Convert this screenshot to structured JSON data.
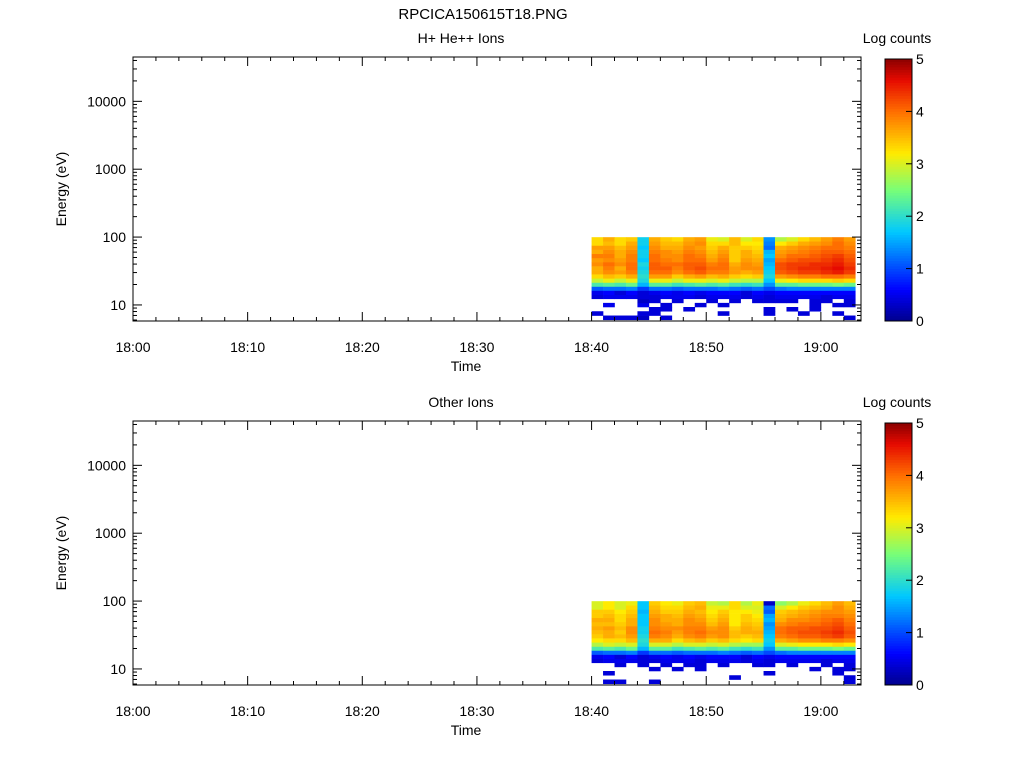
{
  "figure": {
    "title": "RPCICA150615T18.PNG"
  },
  "chart_data": [
    {
      "type": "heatmap",
      "title": "H+ He++ Ions",
      "xlabel": "Time",
      "ylabel": "Energy (eV)",
      "x_ticks": [
        "18:00",
        "18:10",
        "18:20",
        "18:30",
        "18:40",
        "18:50",
        "19:00"
      ],
      "xlim_minutes": [
        0,
        63.5
      ],
      "y_scale": "log",
      "y_ticks": [
        "10",
        "100",
        "1000",
        "10000"
      ],
      "ylim": [
        5.8,
        45000
      ],
      "colorbar": {
        "label": "Log counts",
        "ticks": [
          "0",
          "1",
          "2",
          "3",
          "4",
          "5"
        ],
        "range": [
          0,
          5
        ]
      },
      "time_bins_minutes": [
        40.5,
        41.5,
        42.5,
        43.5,
        44.5,
        45.5,
        46.5,
        47.5,
        48.5,
        49.5,
        50.5,
        51.5,
        52.5,
        53.5,
        54.5,
        55.5,
        56.5,
        57.5,
        58.5,
        59.5,
        60.5,
        61.5,
        62.5
      ],
      "energy_bins_eV": [
        6.5,
        7.5,
        8.7,
        10,
        11.5,
        13.2,
        15.2,
        17.5,
        20,
        23,
        26.5,
        30.5,
        35,
        40,
        46,
        53,
        61,
        70,
        81,
        93
      ],
      "values_log_counts_by_time": [
        [
          0,
          0.4,
          0,
          0,
          0,
          0.4,
          0.5,
          1.1,
          2.2,
          2.9,
          3.3,
          3.6,
          3.6,
          3.8,
          3.7,
          3.9,
          3.6,
          3.7,
          3.3,
          3.3
        ],
        [
          0.4,
          0,
          0,
          0.5,
          0,
          0.5,
          0.6,
          1.2,
          2.3,
          3.1,
          3.5,
          3.8,
          3.9,
          4.0,
          3.8,
          3.9,
          3.8,
          3.7,
          3.5,
          3.6
        ],
        [
          0.4,
          0,
          0,
          0,
          0,
          0.5,
          0.4,
          1.2,
          2.2,
          2.9,
          3.4,
          3.7,
          3.6,
          3.8,
          3.7,
          3.6,
          3.6,
          3.5,
          3.3,
          3.3
        ],
        [
          0.4,
          0,
          0,
          0,
          0,
          0.5,
          0.6,
          1.3,
          2.4,
          3.1,
          3.6,
          3.9,
          4.0,
          4.0,
          3.9,
          3.9,
          3.8,
          3.7,
          3.6,
          3.4
        ],
        [
          0.3,
          0.4,
          0,
          0.5,
          0.3,
          0.4,
          0.4,
          0.9,
          1.6,
          1.9,
          2.0,
          1.9,
          1.8,
          1.9,
          1.7,
          1.8,
          1.8,
          1.7,
          1.8,
          1.8
        ],
        [
          0,
          0.4,
          0.4,
          0,
          0.4,
          0.4,
          0.5,
          1.2,
          2.3,
          3.1,
          3.7,
          4.0,
          4.1,
          4.1,
          4.0,
          4.0,
          3.9,
          3.8,
          3.7,
          3.6
        ],
        [
          0.4,
          0,
          0.4,
          0.4,
          0,
          0.5,
          0.6,
          1.2,
          2.3,
          3.1,
          3.7,
          4.0,
          4.1,
          4.0,
          3.9,
          3.8,
          3.8,
          3.6,
          3.5,
          3.4
        ],
        [
          0,
          0,
          0,
          0,
          0.4,
          0.5,
          0.5,
          1.1,
          2.1,
          2.9,
          3.4,
          3.8,
          3.9,
          4.0,
          3.8,
          3.8,
          3.7,
          3.6,
          3.5,
          3.3
        ],
        [
          0,
          0,
          0.4,
          0,
          0,
          0.5,
          0.6,
          1.2,
          2.2,
          3.1,
          3.6,
          4.0,
          4.1,
          4.1,
          4.0,
          4.0,
          3.9,
          3.8,
          3.7,
          3.6
        ],
        [
          0,
          0,
          0,
          0.4,
          0,
          0.4,
          0.5,
          1.2,
          2.3,
          3.1,
          3.7,
          4.1,
          4.2,
          4.1,
          4.0,
          3.9,
          3.8,
          3.7,
          3.8,
          3.7
        ],
        [
          0,
          0,
          0,
          0,
          0.4,
          0.5,
          0.6,
          1.2,
          2.2,
          3.0,
          3.5,
          3.9,
          4.0,
          3.9,
          3.7,
          3.6,
          3.5,
          3.4,
          3.3,
          3.1
        ],
        [
          0,
          0.4,
          0,
          0.4,
          0,
          0.5,
          0.6,
          1.3,
          2.3,
          3.1,
          3.6,
          3.9,
          4.0,
          4.0,
          3.9,
          3.8,
          3.7,
          3.6,
          3.3,
          3.0
        ],
        [
          0,
          0,
          0,
          0,
          0.4,
          0.5,
          0.6,
          1.2,
          2.1,
          2.9,
          3.4,
          3.7,
          3.7,
          3.6,
          3.4,
          3.4,
          3.4,
          3.4,
          3.5,
          3.5
        ],
        [
          0,
          0,
          0,
          0,
          0,
          0.4,
          0.4,
          1.1,
          2.0,
          2.8,
          3.3,
          3.6,
          3.8,
          3.8,
          3.7,
          3.6,
          3.6,
          3.4,
          3.2,
          3.0
        ],
        [
          0,
          0,
          0,
          0,
          0.4,
          0.5,
          0.6,
          1.2,
          2.1,
          2.8,
          3.4,
          3.7,
          3.8,
          3.7,
          3.6,
          3.5,
          3.4,
          3.3,
          3.2,
          3.3
        ],
        [
          0,
          0.4,
          0.4,
          0,
          0.4,
          0.4,
          0.5,
          1.0,
          1.4,
          1.7,
          1.9,
          1.8,
          1.7,
          1.6,
          1.5,
          1.7,
          1.6,
          1.2,
          1.3,
          1.4
        ],
        [
          0,
          0,
          0,
          0,
          0.4,
          0.5,
          0.6,
          1.2,
          2.3,
          3.1,
          3.7,
          4.1,
          4.2,
          4.2,
          4.0,
          3.8,
          3.7,
          3.6,
          3.2,
          2.8
        ],
        [
          0,
          0,
          0.4,
          0,
          0.4,
          0.5,
          0.6,
          1.3,
          2.3,
          3.2,
          3.8,
          4.2,
          4.3,
          4.3,
          4.1,
          4.0,
          3.8,
          3.7,
          3.4,
          3.0
        ],
        [
          0,
          0.4,
          0,
          0,
          0,
          0.5,
          0.6,
          1.3,
          2.4,
          3.3,
          3.9,
          4.3,
          4.4,
          4.3,
          4.2,
          4.0,
          3.9,
          3.8,
          3.6,
          3.3
        ],
        [
          0,
          0,
          0.4,
          0.4,
          0.4,
          0.5,
          0.6,
          1.3,
          2.4,
          3.3,
          3.9,
          4.3,
          4.4,
          4.4,
          4.2,
          4.1,
          4.0,
          3.9,
          3.7,
          3.5
        ],
        [
          0,
          0,
          0,
          0,
          0.4,
          0.4,
          0.6,
          1.3,
          2.4,
          3.3,
          4.0,
          4.4,
          4.5,
          4.4,
          4.3,
          4.2,
          4.1,
          4.0,
          3.8,
          3.7
        ],
        [
          0,
          0.4,
          0,
          0.4,
          0,
          0.5,
          0.6,
          1.3,
          2.5,
          3.4,
          4.0,
          4.5,
          4.6,
          4.5,
          4.4,
          4.3,
          4.1,
          4.0,
          4.0,
          3.9
        ],
        [
          0.4,
          0,
          0,
          0.4,
          0.4,
          0.5,
          0.6,
          1.3,
          2.4,
          3.3,
          3.9,
          4.3,
          4.4,
          4.3,
          4.2,
          4.1,
          4.0,
          3.9,
          3.8,
          3.7
        ]
      ]
    },
    {
      "type": "heatmap",
      "title": "Other Ions",
      "xlabel": "Time",
      "ylabel": "Energy (eV)",
      "x_ticks": [
        "18:00",
        "18:10",
        "18:20",
        "18:30",
        "18:40",
        "18:50",
        "19:00"
      ],
      "xlim_minutes": [
        0,
        63.5
      ],
      "y_scale": "log",
      "y_ticks": [
        "10",
        "100",
        "1000",
        "10000"
      ],
      "ylim": [
        5.8,
        45000
      ],
      "colorbar": {
        "label": "Log counts",
        "ticks": [
          "0",
          "1",
          "2",
          "3",
          "4",
          "5"
        ],
        "range": [
          0,
          5
        ]
      },
      "time_bins_minutes": [
        40.5,
        41.5,
        42.5,
        43.5,
        44.5,
        45.5,
        46.5,
        47.5,
        48.5,
        49.5,
        50.5,
        51.5,
        52.5,
        53.5,
        54.5,
        55.5,
        56.5,
        57.5,
        58.5,
        59.5,
        60.5,
        61.5,
        62.5
      ],
      "energy_bins_eV": [
        6.5,
        7.5,
        8.7,
        10,
        11.5,
        13.2,
        15.2,
        17.5,
        20,
        23,
        26.5,
        30.5,
        35,
        40,
        46,
        53,
        61,
        70,
        81,
        93
      ],
      "values_log_counts_by_time": [
        [
          0,
          0,
          0,
          0,
          0,
          0.4,
          0.5,
          1.1,
          2.2,
          2.8,
          3.2,
          3.4,
          3.5,
          3.6,
          3.5,
          3.6,
          3.4,
          3.4,
          3.0,
          3.0
        ],
        [
          0.4,
          0,
          0.4,
          0,
          0,
          0.5,
          0.6,
          1.2,
          2.3,
          3.0,
          3.3,
          3.6,
          3.6,
          3.7,
          3.5,
          3.6,
          3.5,
          3.4,
          3.2,
          3.2
        ],
        [
          0.4,
          0,
          0,
          0,
          0.4,
          0.5,
          0.4,
          1.2,
          2.2,
          2.9,
          3.3,
          3.5,
          3.4,
          3.5,
          3.4,
          3.3,
          3.3,
          3.2,
          3.0,
          3.0
        ],
        [
          0,
          0,
          0,
          0,
          0,
          0.5,
          0.6,
          1.3,
          2.4,
          3.0,
          3.5,
          3.7,
          3.8,
          3.8,
          3.6,
          3.6,
          3.5,
          3.4,
          3.3,
          3.1
        ],
        [
          0,
          0,
          0,
          0,
          0.4,
          0.4,
          0.4,
          0.9,
          1.6,
          1.9,
          2.0,
          1.9,
          1.8,
          1.8,
          1.7,
          1.7,
          1.7,
          1.6,
          1.7,
          1.7
        ],
        [
          0.4,
          0,
          0,
          0.4,
          0,
          0.4,
          0.5,
          1.2,
          2.3,
          3.0,
          3.6,
          3.9,
          4.0,
          3.9,
          3.8,
          3.8,
          3.7,
          3.6,
          3.5,
          3.4
        ],
        [
          0,
          0,
          0,
          0,
          0.4,
          0.5,
          0.6,
          1.2,
          2.3,
          3.0,
          3.6,
          3.8,
          3.9,
          3.8,
          3.7,
          3.6,
          3.6,
          3.4,
          3.3,
          3.2
        ],
        [
          0,
          0,
          0,
          0.4,
          0,
          0.5,
          0.5,
          1.1,
          2.1,
          2.8,
          3.3,
          3.6,
          3.7,
          3.8,
          3.6,
          3.6,
          3.5,
          3.4,
          3.3,
          3.1
        ],
        [
          0,
          0,
          0,
          0,
          0.4,
          0.5,
          0.6,
          1.2,
          2.2,
          3.0,
          3.5,
          3.8,
          3.9,
          3.9,
          3.8,
          3.8,
          3.7,
          3.6,
          3.5,
          3.4
        ],
        [
          0,
          0,
          0,
          0.4,
          0.4,
          0.4,
          0.5,
          1.2,
          2.3,
          3.0,
          3.6,
          3.9,
          4.0,
          3.9,
          3.8,
          3.7,
          3.6,
          3.5,
          3.6,
          3.5
        ],
        [
          0,
          0,
          0,
          0,
          0,
          0.5,
          0.6,
          1.2,
          2.2,
          2.9,
          3.4,
          3.7,
          3.8,
          3.7,
          3.5,
          3.4,
          3.3,
          3.2,
          3.1,
          2.9
        ],
        [
          0,
          0,
          0,
          0,
          0.4,
          0.5,
          0.6,
          1.3,
          2.3,
          3.0,
          3.5,
          3.8,
          3.8,
          3.8,
          3.7,
          3.6,
          3.5,
          3.4,
          3.1,
          2.8
        ],
        [
          0,
          0.4,
          0,
          0,
          0,
          0.5,
          0.6,
          1.2,
          2.1,
          2.8,
          3.3,
          3.5,
          3.5,
          3.4,
          3.2,
          3.2,
          3.2,
          3.2,
          3.3,
          3.3
        ],
        [
          0,
          0,
          0,
          0,
          0,
          0.4,
          0.4,
          1.1,
          2.0,
          2.7,
          3.2,
          3.4,
          3.6,
          3.6,
          3.5,
          3.4,
          3.4,
          3.2,
          3.0,
          2.8
        ],
        [
          0,
          0,
          0,
          0,
          0.4,
          0.5,
          0.6,
          1.2,
          2.1,
          2.7,
          3.3,
          3.5,
          3.6,
          3.5,
          3.4,
          3.3,
          3.2,
          3.1,
          3.0,
          3.1
        ],
        [
          0,
          0,
          0.4,
          0,
          0.4,
          0.4,
          0.5,
          1.0,
          1.4,
          1.7,
          1.8,
          1.7,
          1.6,
          1.5,
          1.4,
          1.6,
          1.5,
          1.1,
          1.2,
          0.3
        ],
        [
          0,
          0,
          0,
          0,
          0,
          0.5,
          0.6,
          1.2,
          2.3,
          3.0,
          3.6,
          3.9,
          4.0,
          4.0,
          3.8,
          3.6,
          3.5,
          3.4,
          3.0,
          2.6
        ],
        [
          0,
          0,
          0,
          0,
          0.4,
          0.5,
          0.6,
          1.3,
          2.3,
          3.1,
          3.7,
          4.0,
          4.1,
          4.1,
          3.9,
          3.8,
          3.6,
          3.5,
          3.2,
          2.8
        ],
        [
          0,
          0,
          0,
          0,
          0,
          0.5,
          0.6,
          1.3,
          2.4,
          3.2,
          3.8,
          4.1,
          4.2,
          4.1,
          4.0,
          3.8,
          3.7,
          3.6,
          3.4,
          3.1
        ],
        [
          0,
          0,
          0,
          0.4,
          0,
          0.5,
          0.6,
          1.3,
          2.4,
          3.2,
          3.8,
          4.1,
          4.2,
          4.2,
          4.0,
          3.9,
          3.8,
          3.7,
          3.5,
          3.3
        ],
        [
          0,
          0,
          0,
          0,
          0.4,
          0.4,
          0.6,
          1.3,
          2.4,
          3.2,
          3.9,
          4.2,
          4.3,
          4.2,
          4.1,
          4.0,
          3.9,
          3.8,
          3.6,
          3.5
        ],
        [
          0,
          0,
          0.4,
          0.4,
          0,
          0.5,
          0.6,
          1.3,
          2.5,
          3.3,
          3.9,
          4.3,
          4.4,
          4.3,
          4.2,
          4.1,
          3.9,
          3.8,
          3.8,
          3.7
        ],
        [
          0.4,
          0.4,
          0,
          0.4,
          0.4,
          0.5,
          0.6,
          1.3,
          2.4,
          3.2,
          3.8,
          4.1,
          4.2,
          4.1,
          4.0,
          3.9,
          3.8,
          3.7,
          3.6,
          3.5
        ]
      ]
    }
  ]
}
